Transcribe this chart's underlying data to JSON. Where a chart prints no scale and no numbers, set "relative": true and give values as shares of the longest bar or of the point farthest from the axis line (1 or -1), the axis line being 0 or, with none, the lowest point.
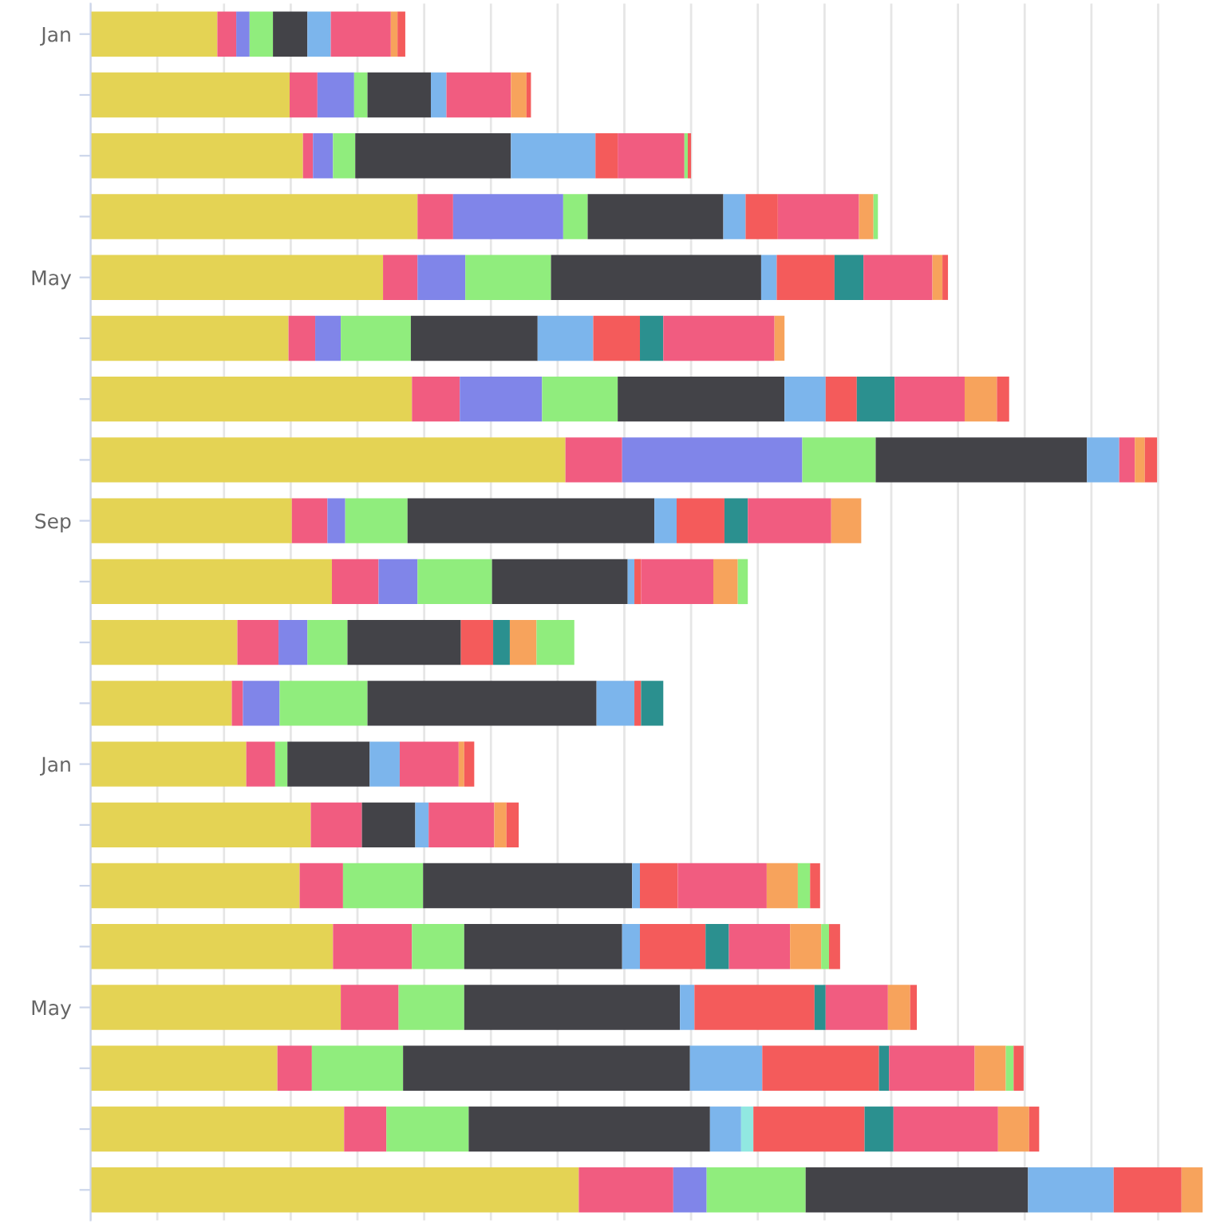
{
  "chart_data": {
    "type": "bar",
    "orientation": "horizontal",
    "stacked": true,
    "relative": true,
    "grid": "x",
    "tick_labels": "y",
    "categories": [
      "Jan",
      null,
      null,
      null,
      "May",
      null,
      null,
      null,
      "Sep",
      null,
      null,
      null,
      "Jan",
      null,
      null,
      null,
      "May",
      null,
      null,
      null
    ],
    "series": [
      {
        "color": "#e4d354",
        "values": [
          0.114,
          0.179,
          0.191,
          0.294,
          0.263,
          0.178,
          0.289,
          0.427,
          0.181,
          0.217,
          0.132,
          0.127,
          0.14,
          0.198,
          0.188,
          0.218,
          0.225,
          0.168,
          0.228,
          0.439
        ]
      },
      {
        "color": "#f15c80",
        "values": [
          0.017,
          0.025,
          0.009,
          0.032,
          0.031,
          0.024,
          0.043,
          0.051,
          0.032,
          0.042,
          0.037,
          0.01,
          0.026,
          0.046,
          0.039,
          0.071,
          0.052,
          0.031,
          0.038,
          0.085
        ]
      },
      {
        "color": "#8085e9",
        "values": [
          0.012,
          0.033,
          0.018,
          0.099,
          0.043,
          0.023,
          0.074,
          0.162,
          0.016,
          0.035,
          0.026,
          0.033,
          0,
          0,
          0,
          0,
          0,
          0,
          0,
          0.03
        ]
      },
      {
        "color": "#90ed7d",
        "values": [
          0.021,
          0.012,
          0.02,
          0.022,
          0.077,
          0.063,
          0.068,
          0.066,
          0.056,
          0.067,
          0.036,
          0.079,
          0.011,
          0,
          0.072,
          0.047,
          0.059,
          0.082,
          0.074,
          0.089
        ]
      },
      {
        "color": "#434348",
        "values": [
          0.031,
          0.057,
          0.14,
          0.122,
          0.189,
          0.114,
          0.15,
          0.19,
          0.222,
          0.122,
          0.102,
          0.206,
          0.074,
          0.048,
          0.188,
          0.142,
          0.194,
          0.258,
          0.217,
          0.2
        ]
      },
      {
        "color": "#7cb5ec",
        "values": [
          0.021,
          0.014,
          0.076,
          0.02,
          0.014,
          0.05,
          0.037,
          0.029,
          0.02,
          0.006,
          0,
          0.034,
          0.027,
          0.012,
          0.007,
          0.016,
          0.013,
          0.065,
          0.028,
          0.077
        ]
      },
      {
        "color": "#91e8e1",
        "values": [
          0,
          0,
          0,
          0,
          0,
          0,
          0,
          0,
          0,
          0,
          0,
          0,
          0,
          0,
          0,
          0,
          0,
          0,
          0.011,
          0
        ]
      },
      {
        "color": "#f45b5b",
        "values": [
          0,
          0,
          0.02,
          0.029,
          0.052,
          0.042,
          0.028,
          0,
          0.043,
          0.006,
          0.029,
          0.006,
          0,
          0,
          0.034,
          0.059,
          0.108,
          0.105,
          0.1,
          0.061
        ]
      },
      {
        "color": "#2b908f",
        "values": [
          0,
          0,
          0,
          0,
          0.026,
          0.021,
          0.034,
          0,
          0.021,
          0,
          0.015,
          0.02,
          0,
          0,
          0,
          0.021,
          0.01,
          0.009,
          0.026,
          0
        ]
      },
      {
        "color": "#f15c80",
        "values": [
          0.054,
          0.058,
          0.06,
          0.073,
          0.062,
          0.1,
          0.063,
          0.014,
          0.075,
          0.065,
          0,
          0,
          0.053,
          0.059,
          0.08,
          0.055,
          0.056,
          0.077,
          0.094,
          0
        ]
      },
      {
        "color": "#f7a35c",
        "values": [
          0.006,
          0.014,
          0,
          0.013,
          0.009,
          0.009,
          0.029,
          0.009,
          0.027,
          0.022,
          0.024,
          0,
          0.005,
          0.011,
          0.028,
          0.028,
          0.02,
          0.028,
          0.028,
          0.019
        ]
      },
      {
        "color": "#90ed7d",
        "values": [
          0,
          0,
          0.003,
          0.004,
          0,
          0,
          0,
          0,
          0,
          0.009,
          0.034,
          0,
          0,
          0,
          0.011,
          0.007,
          0,
          0.007,
          0,
          0
        ]
      },
      {
        "color": "#f45b5b",
        "values": [
          0.007,
          0.004,
          0.003,
          0,
          0.005,
          0,
          0.011,
          0.011,
          0,
          0,
          0,
          0,
          0.009,
          0.011,
          0.009,
          0.01,
          0.006,
          0.009,
          0.009,
          0
        ]
      }
    ]
  }
}
